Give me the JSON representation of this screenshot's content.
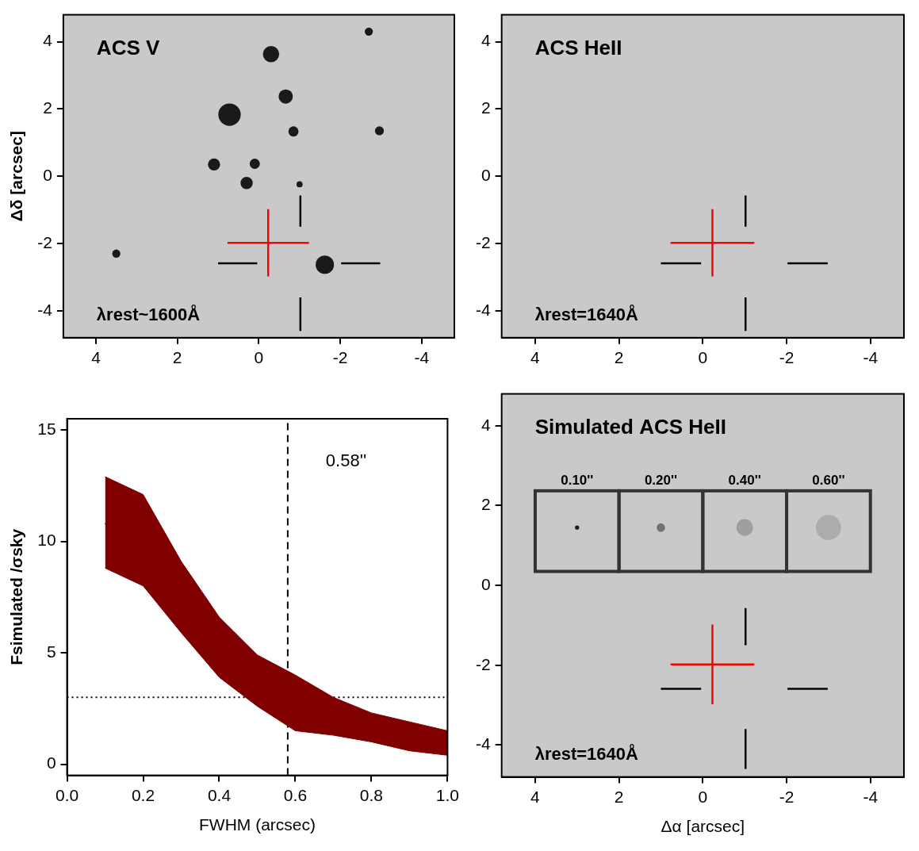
{
  "chart_data": [
    {
      "type": "image",
      "title": "ACS V",
      "annotation": "λrest~1600Å",
      "xlim": [
        4.8,
        -4.8
      ],
      "ylim": [
        -4.8,
        4.8
      ],
      "xticks": [
        4,
        2,
        0,
        -2,
        -4
      ],
      "yticks": [
        -4,
        -2,
        0,
        2,
        4
      ],
      "y_label": "Δδ [arcsec]",
      "sources": {
        "color": "#1a1a1a",
        "x": [
          0.72,
          -0.3,
          -0.66,
          -0.85,
          -2.96,
          -2.7,
          1.1,
          0.3,
          0.1,
          -1.0,
          -1.62,
          3.5
        ],
        "y": [
          1.83,
          3.63,
          2.37,
          1.33,
          1.35,
          4.3,
          0.35,
          -0.2,
          0.37,
          -0.24,
          -2.63,
          -2.3
        ],
        "size": [
          0.55,
          0.4,
          0.35,
          0.25,
          0.22,
          0.2,
          0.3,
          0.3,
          0.25,
          0.15,
          0.45,
          0.2
        ]
      },
      "cross": {
        "color": "#ff0000",
        "segments": [
          [
            [
              -1.23,
              -1.98
            ],
            [
              0.77,
              -1.98
            ]
          ],
          [
            [
              -0.23,
              -0.98
            ],
            [
              -0.23,
              -2.98
            ]
          ]
        ]
      },
      "marks": {
        "color": "#000000",
        "segments": [
          [
            [
              -1.02,
              -0.57
            ],
            [
              -1.02,
              -1.5
            ]
          ],
          [
            [
              -1.02,
              -3.6
            ],
            [
              -1.02,
              -4.6
            ]
          ],
          [
            [
              1.0,
              -2.59
            ],
            [
              0.04,
              -2.59
            ]
          ],
          [
            [
              -2.02,
              -2.59
            ],
            [
              -2.98,
              -2.59
            ]
          ]
        ]
      }
    },
    {
      "type": "image",
      "title": "ACS HeII",
      "annotation": "λrest=1640Å",
      "xlim": [
        4.8,
        -4.8
      ],
      "ylim": [
        -4.8,
        4.8
      ],
      "xticks": [
        4,
        2,
        0,
        -2,
        -4
      ],
      "yticks": [
        -4,
        -2,
        0,
        2,
        4
      ],
      "cross": {
        "color": "#ff0000",
        "segments": [
          [
            [
              -1.23,
              -1.98
            ],
            [
              0.77,
              -1.98
            ]
          ],
          [
            [
              -0.23,
              -0.98
            ],
            [
              -0.23,
              -2.98
            ]
          ]
        ]
      },
      "marks": {
        "color": "#000000",
        "segments": [
          [
            [
              -1.02,
              -0.57
            ],
            [
              -1.02,
              -1.5
            ]
          ],
          [
            [
              -1.02,
              -3.6
            ],
            [
              -1.02,
              -4.6
            ]
          ],
          [
            [
              1.0,
              -2.59
            ],
            [
              0.04,
              -2.59
            ]
          ],
          [
            [
              -2.02,
              -2.59
            ],
            [
              -2.98,
              -2.59
            ]
          ]
        ]
      }
    },
    {
      "type": "line",
      "x_label": "FWHM (arcsec)",
      "y_label": "Fsimulated /σsky",
      "x": [
        0.1,
        0.2,
        0.3,
        0.4,
        0.5,
        0.6,
        0.7,
        0.8,
        0.9,
        1.0
      ],
      "values": [
        10.8,
        10.0,
        7.5,
        5.3,
        3.8,
        2.8,
        2.1,
        1.6,
        1.2,
        0.9
      ],
      "band_high": [
        12.9,
        12.1,
        9.1,
        6.6,
        4.9,
        4.0,
        3.0,
        2.3,
        1.9,
        1.5
      ],
      "band_low": [
        8.8,
        8.0,
        5.9,
        3.9,
        2.6,
        1.5,
        1.3,
        1.0,
        0.6,
        0.4
      ],
      "color": "#000000",
      "band_color": "#800000",
      "xlim": [
        0,
        1
      ],
      "ylim": [
        -0.5,
        15.5
      ],
      "xticks": [
        {
          "value": 0,
          "label": "0.0"
        },
        {
          "value": 0.2,
          "label": "0.2"
        },
        {
          "value": 0.4,
          "label": "0.4"
        },
        {
          "value": 0.6,
          "label": "0.6"
        },
        {
          "value": 0.8,
          "label": "0.8"
        },
        {
          "value": 1,
          "label": "1.0"
        }
      ],
      "yticks": [
        0,
        5,
        10,
        15
      ],
      "vline": {
        "x": 0.58,
        "label": "0.58''",
        "line_style": "dashed"
      },
      "hline": {
        "y": 3,
        "line_style": "dotted"
      }
    },
    {
      "type": "image",
      "title": "Simulated ACS HeII",
      "annotation": "λrest=1640Å",
      "xlim": [
        4.8,
        -4.8
      ],
      "ylim": [
        -4.8,
        4.8
      ],
      "xticks": [
        4,
        2,
        0,
        -2,
        -4
      ],
      "yticks": [
        -4,
        -2,
        0,
        2,
        4
      ],
      "x_label": "Δα [arcsec]",
      "boxes": [
        {
          "label": "0.10''",
          "x": [
            4,
            2
          ],
          "y": [
            0.35,
            2.37
          ],
          "source": [
            3,
            1.45
          ],
          "fwhm": 0.1
        },
        {
          "label": "0.20''",
          "x": [
            2,
            0
          ],
          "y": [
            0.35,
            2.37
          ],
          "source": [
            1,
            1.45
          ],
          "fwhm": 0.2
        },
        {
          "label": "0.40''",
          "x": [
            0,
            -2
          ],
          "y": [
            0.35,
            2.37
          ],
          "source": [
            -1,
            1.45
          ],
          "fwhm": 0.4
        },
        {
          "label": "0.60''",
          "x": [
            -2,
            -4
          ],
          "y": [
            0.35,
            2.37
          ],
          "source": [
            -3,
            1.45
          ],
          "fwhm": 0.6
        }
      ],
      "cross": {
        "color": "#ff0000",
        "segments": [
          [
            [
              -1.23,
              -1.98
            ],
            [
              0.77,
              -1.98
            ]
          ],
          [
            [
              -0.23,
              -0.98
            ],
            [
              -0.23,
              -2.98
            ]
          ]
        ]
      },
      "marks": {
        "color": "#000000",
        "segments": [
          [
            [
              -1.02,
              -0.57
            ],
            [
              -1.02,
              -1.5
            ]
          ],
          [
            [
              -1.02,
              -3.6
            ],
            [
              -1.02,
              -4.6
            ]
          ],
          [
            [
              1.0,
              -2.59
            ],
            [
              0.04,
              -2.59
            ]
          ],
          [
            [
              -2.02,
              -2.59
            ],
            [
              -2.98,
              -2.59
            ]
          ]
        ]
      }
    }
  ]
}
